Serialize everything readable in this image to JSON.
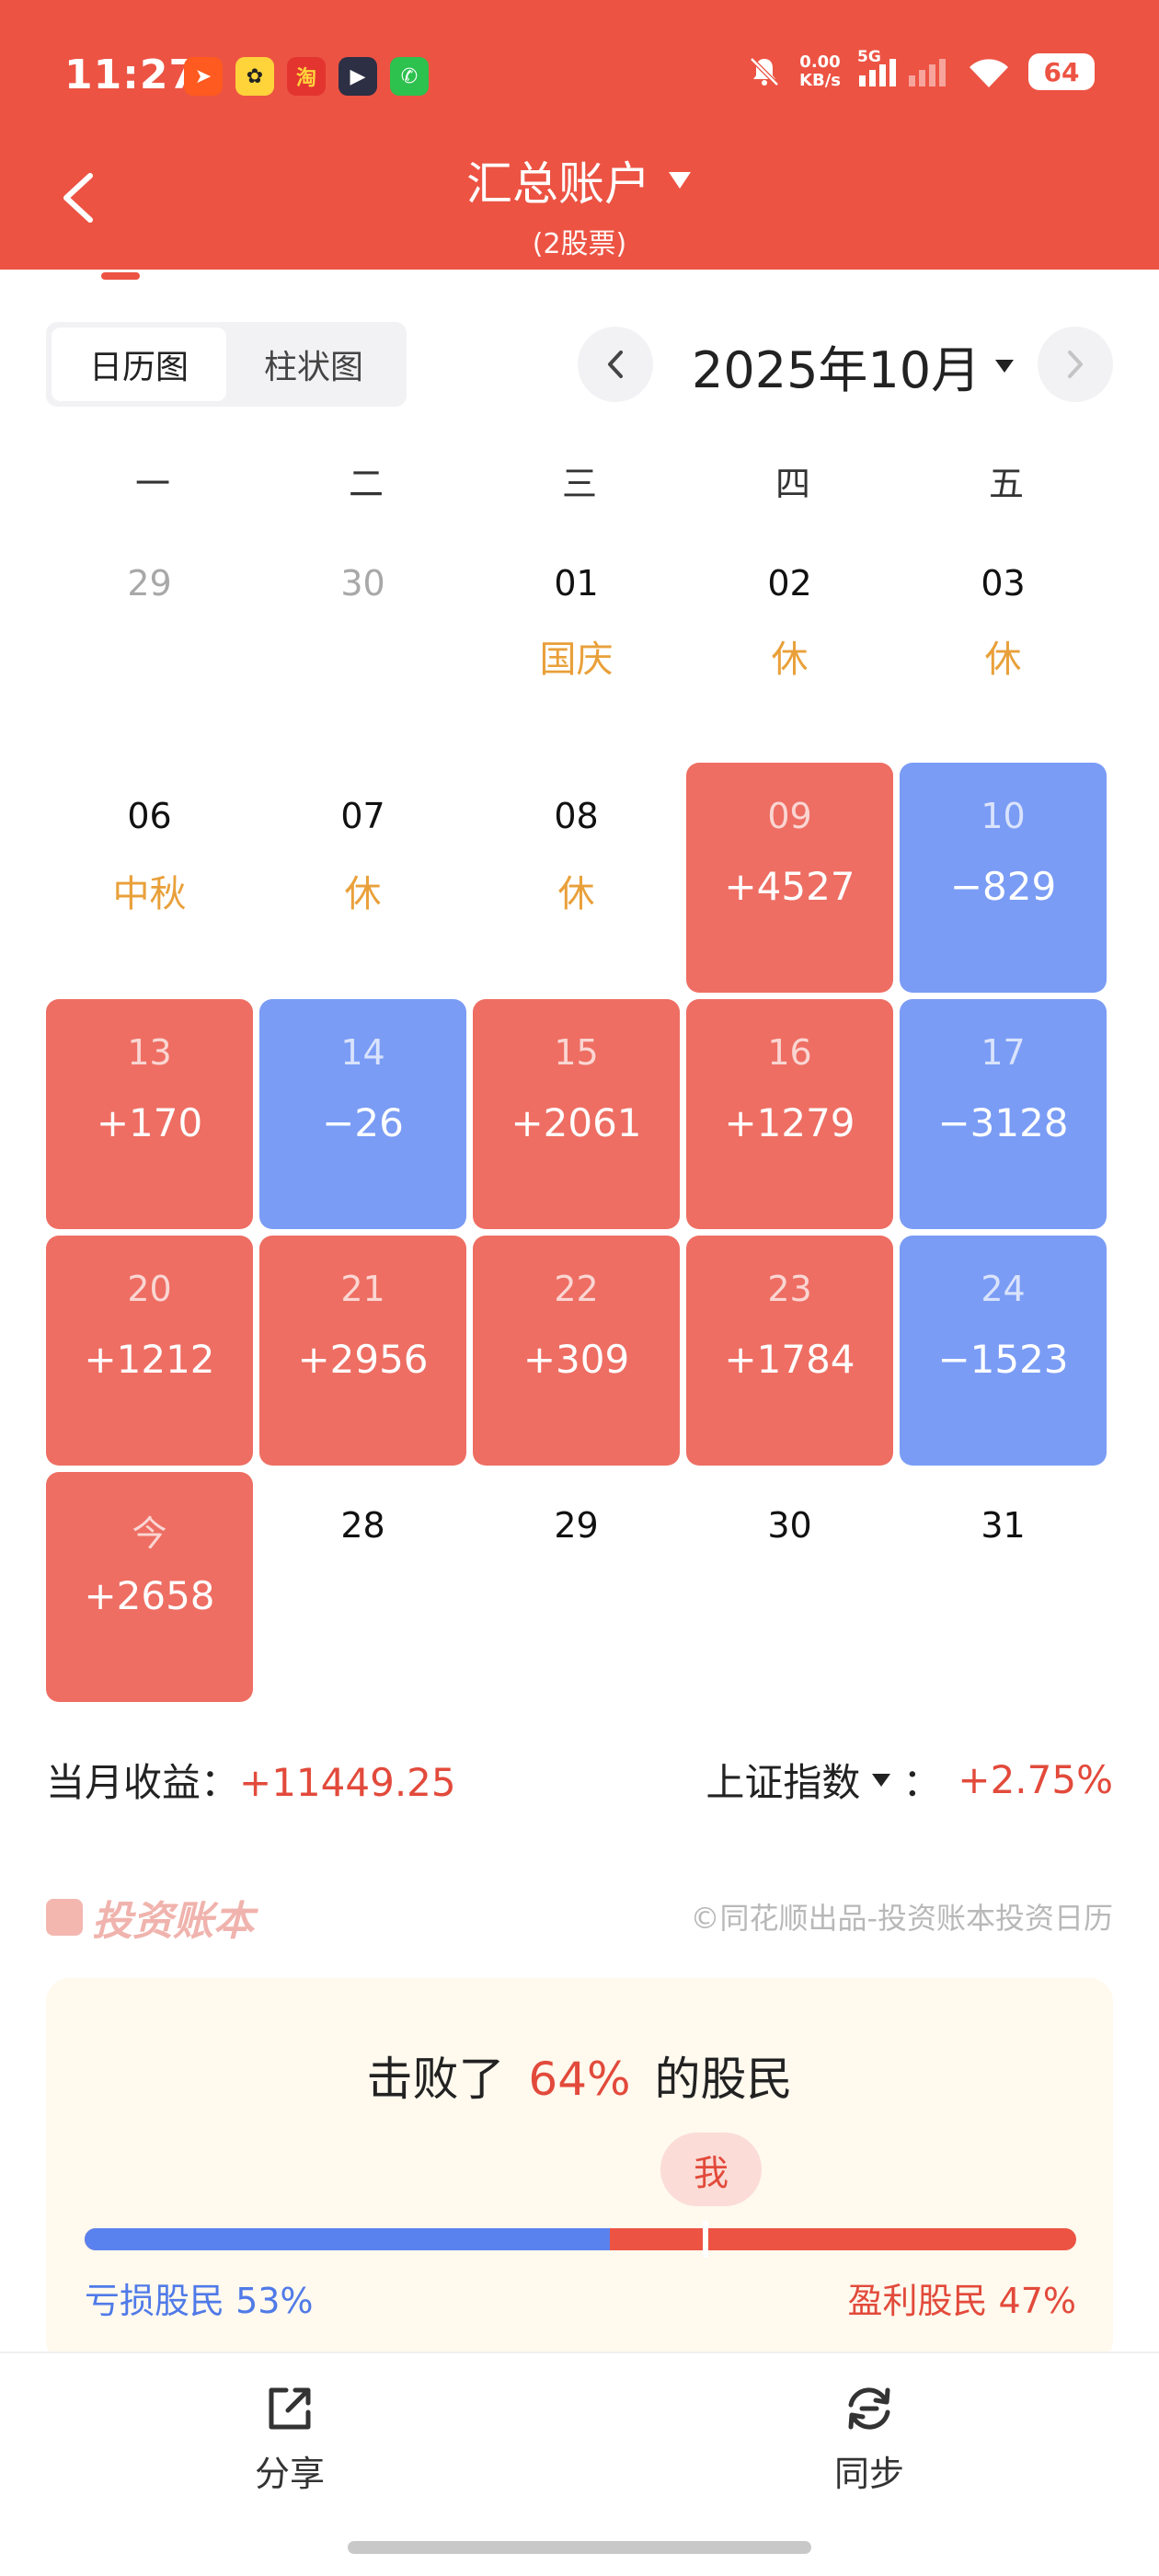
{
  "status_bar": {
    "time": "11:27",
    "net_speed_value": "0.00",
    "net_speed_unit": "KB/s",
    "network": "5G",
    "battery": "64",
    "app_icons": [
      "telegram-icon",
      "qq-icon",
      "taobao-icon",
      "video-icon",
      "wechat-icon"
    ]
  },
  "header": {
    "title": "汇总账户",
    "subtitle": "(2股票)"
  },
  "view_toggle": {
    "calendar": "日历图",
    "bar": "柱状图"
  },
  "month": "2025年10月",
  "weekdays": [
    "一",
    "二",
    "三",
    "四",
    "五"
  ],
  "calendar_rows": [
    [
      {
        "date": "29",
        "sub": "",
        "type": "gray"
      },
      {
        "date": "30",
        "sub": "",
        "type": "gray"
      },
      {
        "date": "01",
        "sub": "国庆",
        "type": "holiday"
      },
      {
        "date": "02",
        "sub": "休",
        "type": "holiday"
      },
      {
        "date": "03",
        "sub": "休",
        "type": "holiday"
      }
    ],
    [
      {
        "date": "06",
        "sub": "中秋",
        "type": "holiday"
      },
      {
        "date": "07",
        "sub": "休",
        "type": "holiday"
      },
      {
        "date": "08",
        "sub": "休",
        "type": "holiday"
      },
      {
        "date": "09",
        "sub": "+4527",
        "type": "profit"
      },
      {
        "date": "10",
        "sub": "−829",
        "type": "loss"
      }
    ],
    [
      {
        "date": "13",
        "sub": "+170",
        "type": "profit"
      },
      {
        "date": "14",
        "sub": "−26",
        "type": "loss"
      },
      {
        "date": "15",
        "sub": "+2061",
        "type": "profit"
      },
      {
        "date": "16",
        "sub": "+1279",
        "type": "profit"
      },
      {
        "date": "17",
        "sub": "−3128",
        "type": "loss"
      }
    ],
    [
      {
        "date": "20",
        "sub": "+1212",
        "type": "profit"
      },
      {
        "date": "21",
        "sub": "+2956",
        "type": "profit"
      },
      {
        "date": "22",
        "sub": "+309",
        "type": "profit"
      },
      {
        "date": "23",
        "sub": "+1784",
        "type": "profit"
      },
      {
        "date": "24",
        "sub": "−1523",
        "type": "loss"
      }
    ],
    [
      {
        "date": "今",
        "sub": "+2658",
        "type": "profit"
      },
      {
        "date": "28",
        "sub": "",
        "type": "normal"
      },
      {
        "date": "29",
        "sub": "",
        "type": "normal"
      },
      {
        "date": "30",
        "sub": "",
        "type": "normal"
      },
      {
        "date": "31",
        "sub": "",
        "type": "normal"
      }
    ]
  ],
  "summary": {
    "monthly_label": "当月收益：",
    "monthly_value": "+11449.25",
    "index_label": "上证指数",
    "index_sep": "：",
    "index_value": "+2.75%"
  },
  "brand": "投资账本",
  "credit": "©同花顺出品-投资账本投资日历",
  "ranking": {
    "prefix": "击败了",
    "percent": "64%",
    "suffix": "的股民",
    "me": "我",
    "loss_label": "亏损股民 53%",
    "profit_label": "盈利股民 47%",
    "loss_fraction": 0.53,
    "me_fraction": 0.64
  },
  "bottom": {
    "share": "分享",
    "sync": "同步"
  },
  "colors": {
    "header": "#ec5343",
    "profit": "#ee6e63",
    "loss": "#7a9cf5",
    "holiday": "#e9a03a"
  }
}
